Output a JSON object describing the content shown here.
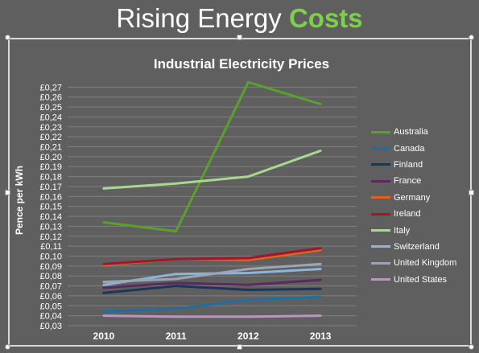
{
  "slide": {
    "title_main": "Rising Energy ",
    "title_accent": "Costs"
  },
  "colors": {
    "background": "#5f5f5f",
    "title_accent": "#7cd04a",
    "gridline": "#7f7f7f",
    "text": "#ffffff"
  },
  "chart_data": {
    "type": "line",
    "title": "Industrial Electricity Prices",
    "ylabel": "Pence per kWh",
    "xlabel": "",
    "x": [
      "2010",
      "2011",
      "2012",
      "2013"
    ],
    "ylim": [
      0.03,
      0.28
    ],
    "y_ticks": [
      "£0,03",
      "£0,04",
      "£0,05",
      "£0,06",
      "£0,07",
      "£0,08",
      "£0,09",
      "£0,10",
      "£0,11",
      "£0,12",
      "£0,13",
      "£0,14",
      "£0,15",
      "£0,16",
      "£0,17",
      "£0,18",
      "£0,19",
      "£0,20",
      "£0,21",
      "£0,22",
      "£0,23",
      "£0,24",
      "£0,25",
      "£0,26",
      "£0,27"
    ],
    "y_tick_values": [
      0.03,
      0.04,
      0.05,
      0.06,
      0.07,
      0.08,
      0.09,
      0.1,
      0.11,
      0.12,
      0.13,
      0.14,
      0.15,
      0.16,
      0.17,
      0.18,
      0.19,
      0.2,
      0.21,
      0.22,
      0.23,
      0.24,
      0.25,
      0.26,
      0.27
    ],
    "grid": true,
    "legend_position": "right",
    "series": [
      {
        "name": "Australia",
        "color": "#5aa02c",
        "values": [
          0.134,
          0.125,
          0.275,
          0.253
        ]
      },
      {
        "name": "Canada",
        "color": "#1f6ea0",
        "values": [
          0.044,
          0.047,
          0.056,
          0.059
        ]
      },
      {
        "name": "Finland",
        "color": "#1b3659",
        "values": [
          0.063,
          0.07,
          0.066,
          0.067
        ]
      },
      {
        "name": "France",
        "color": "#5a2a5f",
        "values": [
          0.068,
          0.073,
          0.071,
          0.076
        ]
      },
      {
        "name": "Germany",
        "color": "#d9661f",
        "values": [
          0.091,
          0.097,
          0.096,
          0.106
        ]
      },
      {
        "name": "Ireland",
        "color": "#a0162a",
        "values": [
          0.092,
          0.097,
          0.098,
          0.108
        ]
      },
      {
        "name": "Italy",
        "color": "#a9d88e",
        "values": [
          0.168,
          0.173,
          0.18,
          0.206
        ]
      },
      {
        "name": "Switzerland",
        "color": "#8eb4d9",
        "values": [
          0.071,
          0.082,
          0.083,
          0.087
        ]
      },
      {
        "name": "United Kingdom",
        "color": "#9aa6b8",
        "values": [
          0.074,
          0.077,
          0.087,
          0.092
        ]
      },
      {
        "name": "United States",
        "color": "#b896bd",
        "values": [
          0.04,
          0.039,
          0.039,
          0.04
        ]
      }
    ]
  }
}
